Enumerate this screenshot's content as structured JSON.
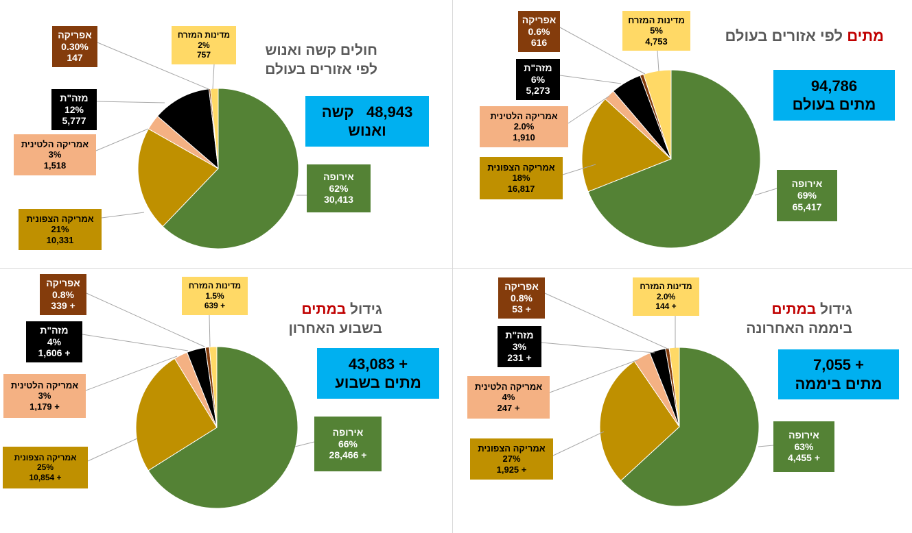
{
  "colors": {
    "europe": "#548235",
    "north_america": "#bf9000",
    "latin_america": "#f4b183",
    "middle_east": "#000000",
    "africa": "#843c0c",
    "eastern": "#ffd966",
    "accent_box": "#00b0f0",
    "title_red": "#c00000",
    "title_gray": "#595959"
  },
  "chart_data": [
    {
      "type": "pie",
      "panel": "top-right",
      "title_parts": [
        {
          "text": "מתים",
          "color": "red"
        },
        {
          "text": " לפי אזורים בעולם",
          "color": "gray"
        }
      ],
      "summary": {
        "line1": "94,786",
        "line2": "מתים בעולם"
      },
      "slices": [
        {
          "key": "europe",
          "name": "אירופה",
          "pct_label": "69%",
          "value_label": "65,417",
          "value": 65417
        },
        {
          "key": "north_america",
          "name": "אמריקה הצפונית",
          "pct_label": "18%",
          "value_label": "16,817",
          "value": 16817
        },
        {
          "key": "latin_america",
          "name": "אמריקה הלטינית",
          "pct_label": "2.0%",
          "value_label": "1,910",
          "value": 1910
        },
        {
          "key": "middle_east",
          "name": "מזה\"ת",
          "pct_label": "6%",
          "value_label": "5,273",
          "value": 5273
        },
        {
          "key": "africa",
          "name": "אפריקה",
          "pct_label": "0.6%",
          "value_label": "616",
          "value": 616
        },
        {
          "key": "eastern",
          "name": "מדינות המזרח",
          "pct_label": "5%",
          "value_label": "4,753",
          "value": 4753
        }
      ]
    },
    {
      "type": "pie",
      "panel": "top-left",
      "title_lines": [
        "חולים קשה ואנוש",
        "לפי אזורים בעולם"
      ],
      "summary": {
        "line1": "48,943   קשה",
        "line2": "ואנוש"
      },
      "slices": [
        {
          "key": "europe",
          "name": "אירופה",
          "pct_label": "62%",
          "value_label": "30,413",
          "value": 30413
        },
        {
          "key": "north_america",
          "name": "אמריקה הצפונית",
          "pct_label": "21%",
          "value_label": "10,331",
          "value": 10331
        },
        {
          "key": "latin_america",
          "name": "אמריקה הלטינית",
          "pct_label": "3%",
          "value_label": "1,518",
          "value": 1518
        },
        {
          "key": "middle_east",
          "name": "מזה\"ת",
          "pct_label": "12%",
          "value_label": "5,777",
          "value": 5777
        },
        {
          "key": "africa",
          "name": "אפריקה",
          "pct_label": "0.30%",
          "value_label": "147",
          "value": 147
        },
        {
          "key": "eastern",
          "name": "מדינות המזרח",
          "pct_label": "2%",
          "value_label": "757",
          "value": 757
        }
      ]
    },
    {
      "type": "pie",
      "panel": "bottom-right",
      "title_parts": [
        {
          "text": "גידול ",
          "color": "gray"
        },
        {
          "text": "במתים",
          "color": "red"
        }
      ],
      "title_line2": "ביממה האחרונה",
      "summary": {
        "line1": "+ 7,055",
        "line2": "מתים ביממה"
      },
      "slices": [
        {
          "key": "europe",
          "name": "אירופה",
          "pct_label": "63%",
          "value_label": "+ 4,455",
          "value": 4455
        },
        {
          "key": "north_america",
          "name": "אמריקה הצפונית",
          "pct_label": "27%",
          "value_label": "+ 1,925",
          "value": 1925
        },
        {
          "key": "latin_america",
          "name": "אמריקה הלטינית",
          "pct_label": "4%",
          "value_label": "+ 247",
          "value": 247
        },
        {
          "key": "middle_east",
          "name": "מזה\"ת",
          "pct_label": "3%",
          "value_label": "+ 231",
          "value": 231
        },
        {
          "key": "africa",
          "name": "אפריקה",
          "pct_label": "0.8%",
          "value_label": "+ 53",
          "value": 53
        },
        {
          "key": "eastern",
          "name": "מדינות המזרח",
          "pct_label": "2.0%",
          "value_label": "+ 144",
          "value": 144
        }
      ]
    },
    {
      "type": "pie",
      "panel": "bottom-left",
      "title_parts": [
        {
          "text": "גידול ",
          "color": "gray"
        },
        {
          "text": "במתים",
          "color": "red"
        }
      ],
      "title_line2": "בשבוע האחרון",
      "summary": {
        "line1": "+ 43,083",
        "line2": "מתים בשבוע"
      },
      "slices": [
        {
          "key": "europe",
          "name": "אירופה",
          "pct_label": "66%",
          "value_label": "+ 28,466",
          "value": 28466
        },
        {
          "key": "north_america",
          "name": "אמריקה הצפונית",
          "pct_label": "25%",
          "value_label": "+ 10,854",
          "value": 10854
        },
        {
          "key": "latin_america",
          "name": "אמריקה הלטינית",
          "pct_label": "3%",
          "value_label": "+ 1,179",
          "value": 1179
        },
        {
          "key": "middle_east",
          "name": "מזה\"ת",
          "pct_label": "4%",
          "value_label": "+ 1,606",
          "value": 1606
        },
        {
          "key": "africa",
          "name": "אפריקה",
          "pct_label": "0.8%",
          "value_label": "+ 339",
          "value": 339
        },
        {
          "key": "eastern",
          "name": "מדינות המזרח",
          "pct_label": "1.5%",
          "value_label": "+ 639",
          "value": 639
        }
      ]
    }
  ]
}
